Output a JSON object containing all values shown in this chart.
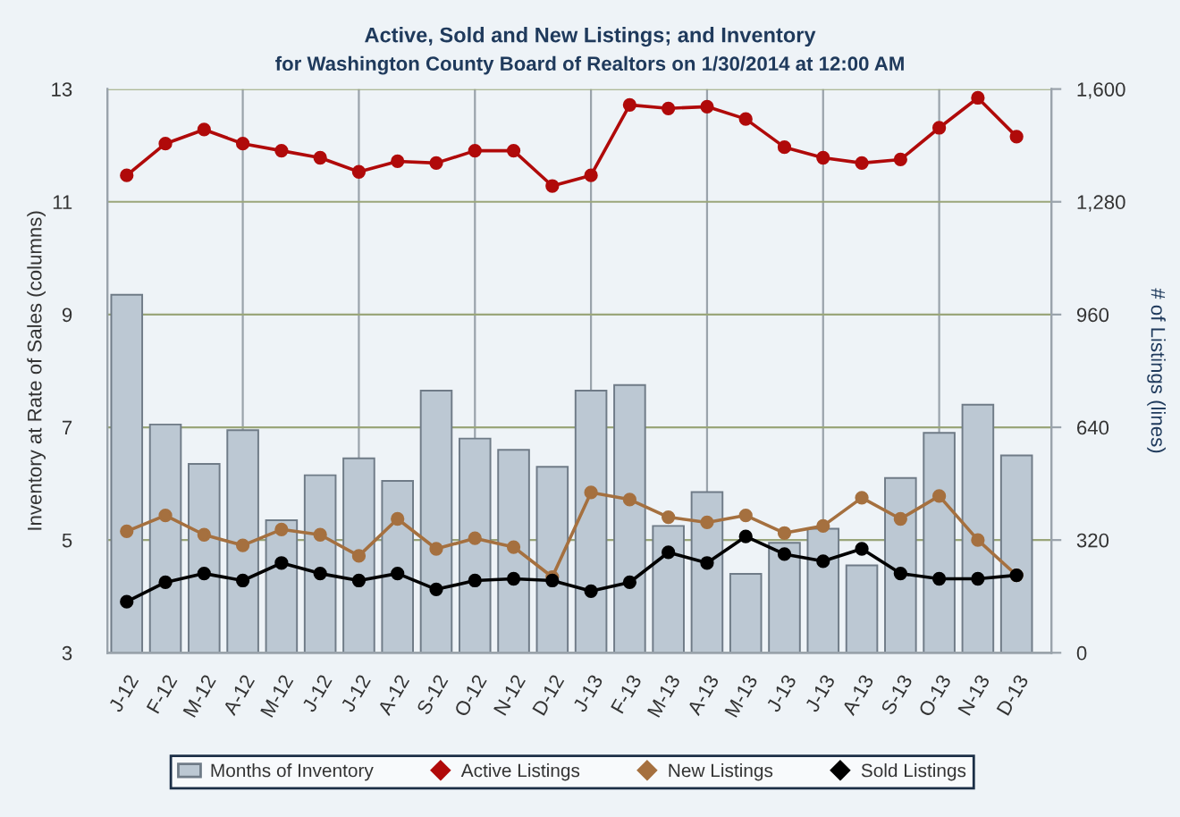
{
  "chart_data": {
    "type": "bar",
    "title": "Active, Sold and New Listings; and Inventory",
    "subtitle": "for Washington County Board of Realtors on 1/30/2014 at 12:00 AM",
    "ylabel": "Inventory at Rate of Sales (columns)",
    "y2label": "# of Listings (lines)",
    "categories": [
      "J-12",
      "F-12",
      "M-12",
      "A-12",
      "M-12",
      "J-12",
      "J-12",
      "A-12",
      "S-12",
      "O-12",
      "N-12",
      "D-12",
      "J-13",
      "F-13",
      "M-13",
      "A-13",
      "M-13",
      "J-13",
      "J-13",
      "A-13",
      "S-13",
      "O-13",
      "N-13",
      "D-13"
    ],
    "series": [
      {
        "name": "Months of Inventory",
        "color": "#bcc8d3",
        "values": [
          9.35,
          7.05,
          6.35,
          6.95,
          5.35,
          6.15,
          6.45,
          6.05,
          7.65,
          6.8,
          6.6,
          6.3,
          7.65,
          7.75,
          5.25,
          5.85,
          4.4,
          4.95,
          5.2,
          4.55,
          6.1,
          6.9,
          7.4,
          6.5
        ]
      },
      {
        "name": "Active Listings",
        "type": "line",
        "axis": "y2",
        "color": "#b00a0a",
        "values": [
          1355,
          1445,
          1485,
          1445,
          1425,
          1405,
          1365,
          1395,
          1390,
          1425,
          1425,
          1325,
          1355,
          1555,
          1545,
          1550,
          1515,
          1435,
          1405,
          1390,
          1400,
          1490,
          1575,
          1465
        ]
      },
      {
        "name": "New Listings",
        "type": "line",
        "axis": "y2",
        "color": "#a5703f",
        "values": [
          345,
          390,
          335,
          305,
          350,
          335,
          275,
          380,
          295,
          325,
          300,
          215,
          455,
          435,
          385,
          370,
          390,
          340,
          360,
          440,
          380,
          445,
          320,
          220
        ]
      },
      {
        "name": "Sold Listings",
        "type": "line",
        "axis": "y2",
        "color": "#000000",
        "values": [
          145,
          200,
          225,
          205,
          255,
          225,
          205,
          225,
          180,
          205,
          210,
          205,
          175,
          200,
          285,
          255,
          330,
          280,
          260,
          295,
          225,
          210,
          210,
          220
        ]
      }
    ],
    "ylim": [
      3,
      13
    ],
    "yticks": [
      3,
      5,
      7,
      9,
      11,
      13
    ],
    "y2lim": [
      0,
      1600
    ],
    "y2ticks": [
      0,
      320,
      640,
      960,
      {
        "value": 1280,
        "label": "1,280"
      },
      {
        "value": 1600,
        "label": "1,600"
      }
    ],
    "grid": true,
    "legend": "bottom",
    "marker": "circle"
  }
}
